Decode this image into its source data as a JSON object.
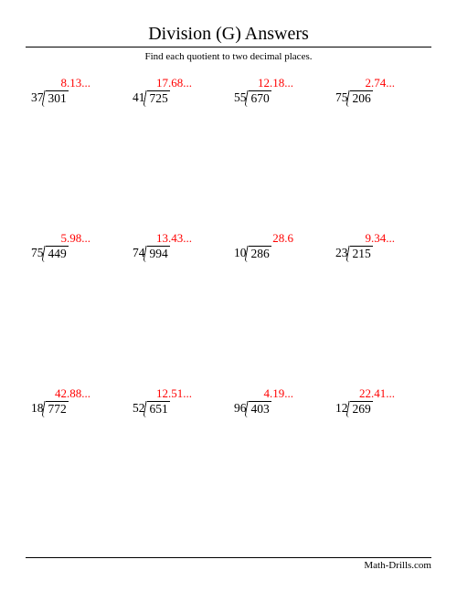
{
  "title": "Division (G) Answers",
  "instructions": "Find each quotient to two decimal places.",
  "footer": "Math-Drills.com",
  "colors": {
    "answer": "#ff0000",
    "text": "#000000",
    "background": "#ffffff"
  },
  "layout": {
    "rows": 3,
    "cols": 4,
    "title_fontsize": 20,
    "body_fontsize": 13.5,
    "instructions_fontsize": 11
  },
  "problems": [
    {
      "divisor": "37",
      "dividend": "301",
      "answer": "8.13..."
    },
    {
      "divisor": "41",
      "dividend": "725",
      "answer": "17.68..."
    },
    {
      "divisor": "55",
      "dividend": "670",
      "answer": "12.18..."
    },
    {
      "divisor": "75",
      "dividend": "206",
      "answer": "2.74..."
    },
    {
      "divisor": "75",
      "dividend": "449",
      "answer": "5.98..."
    },
    {
      "divisor": "74",
      "dividend": "994",
      "answer": "13.43..."
    },
    {
      "divisor": "10",
      "dividend": "286",
      "answer": "28.6"
    },
    {
      "divisor": "23",
      "dividend": "215",
      "answer": "9.34..."
    },
    {
      "divisor": "18",
      "dividend": "772",
      "answer": "42.88..."
    },
    {
      "divisor": "52",
      "dividend": "651",
      "answer": "12.51..."
    },
    {
      "divisor": "96",
      "dividend": "403",
      "answer": "4.19..."
    },
    {
      "divisor": "12",
      "dividend": "269",
      "answer": "22.41..."
    }
  ]
}
